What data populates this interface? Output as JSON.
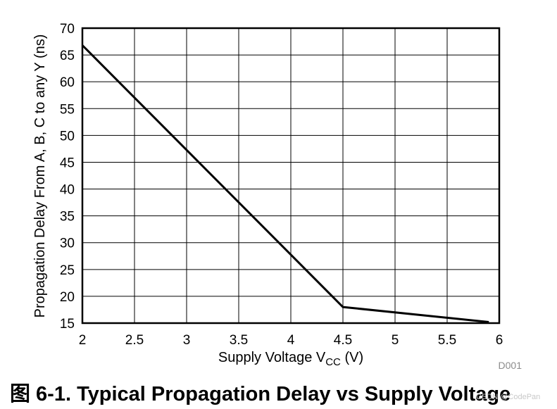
{
  "chart_data": {
    "type": "line",
    "xlabel_main": "Supply Voltage V",
    "xlabel_sub": "CC",
    "xlabel_unit": " (V)",
    "ylabel": "Propagation Delay From A, B, C to any Y (ns)",
    "xlim": [
      2,
      6
    ],
    "ylim": [
      15,
      70
    ],
    "x_ticks": [
      "2",
      "2.5",
      "3",
      "3.5",
      "4",
      "4.5",
      "5",
      "5.5",
      "6"
    ],
    "y_ticks": [
      "15",
      "20",
      "25",
      "30",
      "35",
      "40",
      "45",
      "50",
      "55",
      "60",
      "65",
      "70"
    ],
    "grid": true,
    "series": [
      {
        "x": [
          2,
          4.5,
          5.9
        ],
        "y": [
          66.8,
          18,
          15.2
        ]
      }
    ],
    "line_color": "#000000",
    "figure_code": "D001"
  },
  "caption": "图 6-1. Typical Propagation Delay vs Supply Voltage",
  "watermark": "CSDN @CodePan"
}
